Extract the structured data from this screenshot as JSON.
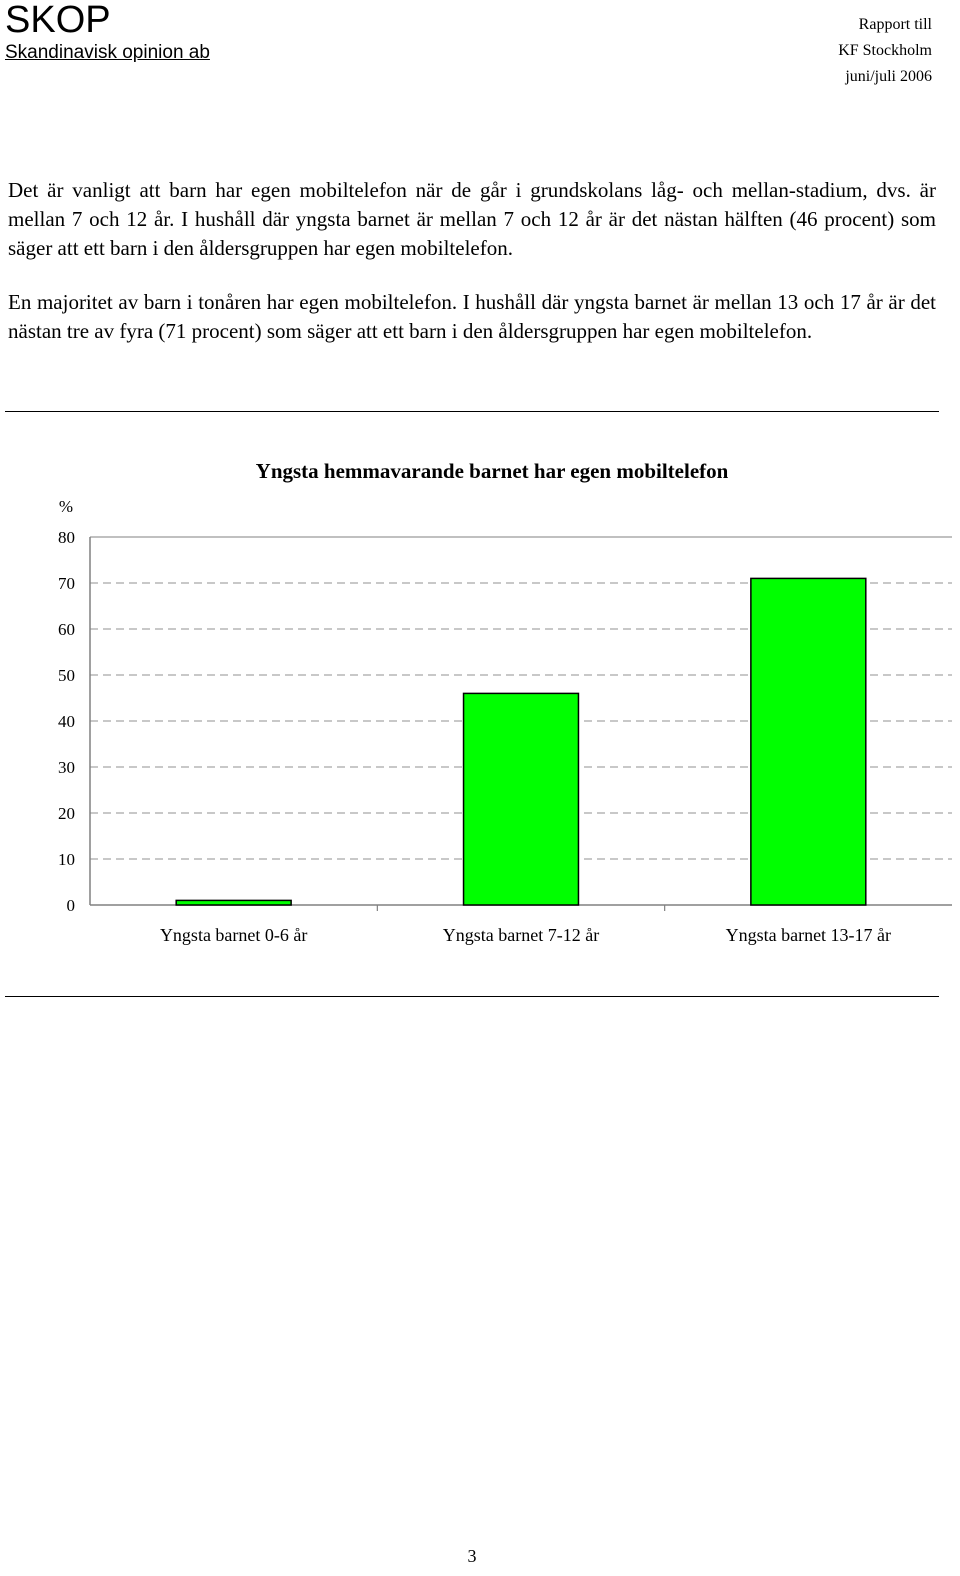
{
  "header": {
    "brand_name": "SKOP",
    "brand_subtitle": "Skandinavisk opinion ab",
    "report_line1": "Rapport till",
    "report_line2": "KF Stockholm",
    "report_line3": "juni/juli 2006"
  },
  "body": {
    "paragraph1": "Det är vanligt att barn har egen mobiltelefon när de går i grundskolans låg- och mellan-stadium, dvs. är mellan 7 och 12 år. I hushåll där yngsta barnet är mellan 7 och 12 år är det nästan hälften (46 procent) som säger att ett barn i den åldersgruppen har egen mobiltelefon.",
    "paragraph2": "En majoritet av barn i tonåren har egen mobiltelefon. I hushåll där yngsta barnet är mellan 13 och 17 år är det nästan tre av fyra (71 procent) som säger att ett barn i den åldersgruppen har egen mobiltelefon."
  },
  "chart_data": {
    "type": "bar",
    "title": "Yngsta hemmavarande barnet har egen mobiltelefon",
    "ylabel": "%",
    "xlabel": "",
    "categories": [
      "Yngsta barnet 0-6 år",
      "Yngsta barnet 7-12 år",
      "Yngsta barnet 13-17 år"
    ],
    "values": [
      1,
      46,
      71
    ],
    "ylim": [
      0,
      80
    ],
    "yticks": [
      0,
      10,
      20,
      30,
      40,
      50,
      60,
      70,
      80
    ],
    "grid": "dashed horizontal",
    "legend": "none",
    "bar_color": "#00ff00"
  },
  "footer": {
    "page_number": "3"
  }
}
